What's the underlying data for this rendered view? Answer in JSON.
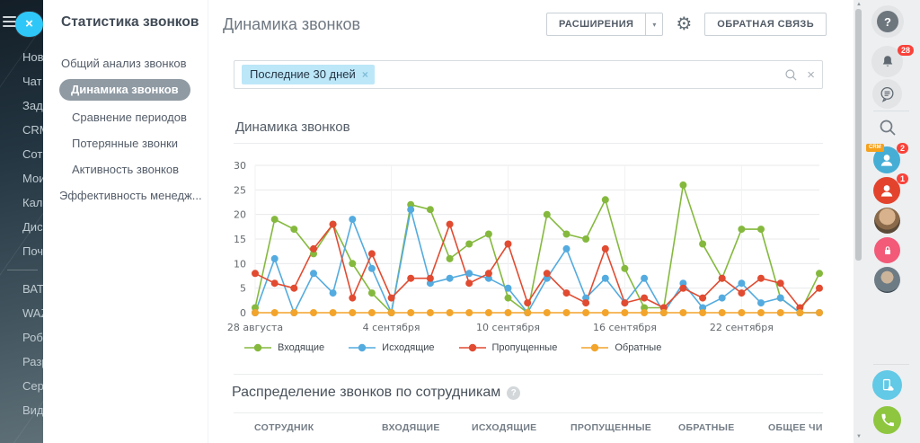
{
  "icons": {
    "close": "×",
    "caret": "▾",
    "gear": "⚙",
    "up_arrow": "▲",
    "down_arrow": "▼",
    "question": "?"
  },
  "left_rail": {
    "items": [
      "Нове",
      "Чат",
      "Зада",
      "CRM",
      "Сотр",
      "Мои",
      "Кале",
      "Диск",
      "Почт",
      "ВАТС",
      "WAZ",
      "Робо",
      "Разр",
      "Сере",
      "Виде"
    ],
    "divider_after_index": 8
  },
  "sidebar": {
    "title": "Статистика звонков",
    "items": [
      {
        "label": "Общий анализ звонков",
        "active": false
      },
      {
        "label": "Динамика звонков",
        "active": true
      },
      {
        "label": "Сравнение периодов",
        "active": false
      },
      {
        "label": "Потерянные звонки",
        "active": false
      },
      {
        "label": "Активность звонков",
        "active": false
      },
      {
        "label": "Эффективность менедж...",
        "active": false
      }
    ]
  },
  "header": {
    "title": "Динамика звонков",
    "buttons": {
      "extensions": "РАСШИРЕНИЯ",
      "feedback": "ОБРАТНАЯ СВЯЗЬ"
    }
  },
  "filter": {
    "chip": "Последние 30 дней"
  },
  "chart_section": {
    "title": "Динамика звонков"
  },
  "chart_data": {
    "type": "line",
    "title": "Динамика звонков",
    "categories": [
      "28.08",
      "29.08",
      "30.08",
      "31.08",
      "01.09",
      "02.09",
      "03.09",
      "04.09",
      "05.09",
      "06.09",
      "07.09",
      "08.09",
      "09.09",
      "10.09",
      "11.09",
      "12.09",
      "13.09",
      "14.09",
      "15.09",
      "16.09",
      "17.09",
      "18.09",
      "19.09",
      "20.09",
      "21.09",
      "22.09",
      "23.09",
      "24.09",
      "25.09",
      "26.09"
    ],
    "series": [
      {
        "name": "Входящие",
        "color": "#85b93e",
        "values": [
          1,
          19,
          17,
          12,
          18,
          10,
          4,
          0,
          22,
          21,
          11,
          14,
          16,
          3,
          0,
          20,
          16,
          15,
          23,
          9,
          1,
          1,
          26,
          14,
          7,
          17,
          17,
          3,
          0,
          8
        ]
      },
      {
        "name": "Исходящие",
        "color": "#54abdf",
        "values": [
          0,
          11,
          0,
          8,
          4,
          19,
          9,
          0,
          21,
          6,
          7,
          8,
          7,
          5,
          0,
          7,
          13,
          3,
          7,
          2,
          7,
          0,
          6,
          1,
          3,
          6,
          2,
          3,
          0,
          0
        ]
      },
      {
        "name": "Пропущенные",
        "color": "#e14b31",
        "values": [
          8,
          6,
          5,
          13,
          18,
          3,
          12,
          3,
          7,
          7,
          18,
          6,
          8,
          14,
          2,
          8,
          4,
          2,
          13,
          2,
          3,
          1,
          5,
          3,
          7,
          4,
          7,
          6,
          1,
          5
        ]
      },
      {
        "name": "Обратные",
        "color": "#f3a42b",
        "values": [
          0,
          0,
          0,
          0,
          0,
          0,
          0,
          0,
          0,
          0,
          0,
          0,
          0,
          0,
          0,
          0,
          0,
          0,
          0,
          0,
          0,
          0,
          0,
          0,
          0,
          0,
          0,
          0,
          0,
          0
        ]
      }
    ],
    "xticks": [
      {
        "index": 0,
        "label": "28 августа"
      },
      {
        "index": 7,
        "label": "4 сентября"
      },
      {
        "index": 13,
        "label": "10 сентября"
      },
      {
        "index": 19,
        "label": "16 сентября"
      },
      {
        "index": 25,
        "label": "22 сентября"
      }
    ],
    "yticks": [
      0,
      5,
      10,
      15,
      20,
      25,
      30
    ],
    "ylim": [
      0,
      30
    ],
    "grid": true,
    "legend_position": "bottom"
  },
  "employees_section": {
    "title": "Распределение звонков по сотрудникам",
    "columns": [
      "СОТРУДНИК",
      "ВХОДЯЩИЕ",
      "ИСХОДЯЩИЕ",
      "ПРОПУЩЕННЫЕ",
      "ОБРАТНЫЕ",
      "ОБЩЕЕ ЧИСЛО З"
    ]
  },
  "right_rail": {
    "notifications_badge": "28",
    "crm_label": "CRM",
    "contact_badge_1": "2",
    "contact_badge_2": "1"
  }
}
